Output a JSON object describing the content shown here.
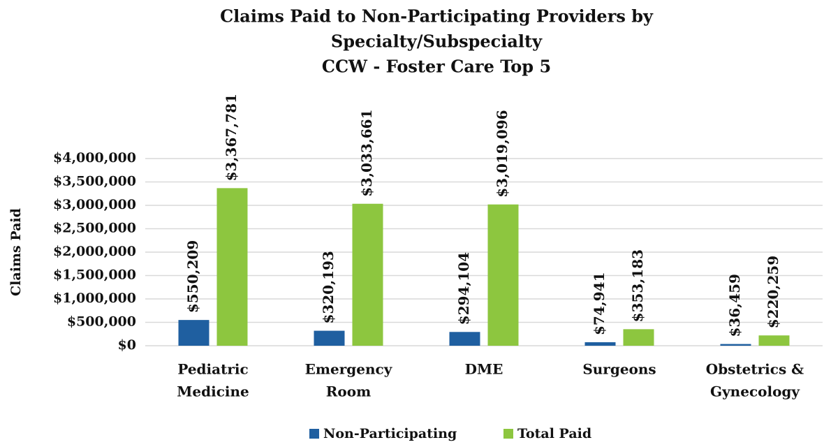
{
  "chart_data": {
    "type": "bar",
    "title": [
      "Claims Paid to Non-Participating Providers by",
      "Specialty/Subspecialty",
      "CCW - Foster Care Top 5"
    ],
    "y_label": "Claims Paid",
    "categories": [
      [
        "Pediatric",
        "Medicine"
      ],
      [
        "Emergency",
        "Room"
      ],
      [
        "DME"
      ],
      [
        "Surgeons"
      ],
      [
        "Obstetrics &",
        "Gynecology"
      ]
    ],
    "series": [
      {
        "name": "Non-Participating",
        "color": "#1f5fa0",
        "values": [
          550209,
          320193,
          294104,
          74941,
          36459
        ],
        "value_labels": [
          "$550,209",
          "$320,193",
          "$294,104",
          "$74,941",
          "$36,459"
        ]
      },
      {
        "name": "Total Paid",
        "color": "#8dc63f",
        "values": [
          3367781,
          3033661,
          3019096,
          353183,
          220259
        ],
        "value_labels": [
          "$3,367,781",
          "$3,033,661",
          "$3,019,096",
          "$353,183",
          "$220,259"
        ]
      }
    ],
    "ylim": [
      0,
      4000000
    ],
    "yticks": [
      {
        "value": 0,
        "label": "$0"
      },
      {
        "value": 500000,
        "label": "$500,000"
      },
      {
        "value": 1000000,
        "label": "$1,000,000"
      },
      {
        "value": 1500000,
        "label": "$1,500,000"
      },
      {
        "value": 2000000,
        "label": "$2,000,000"
      },
      {
        "value": 2500000,
        "label": "$2,500,000"
      },
      {
        "value": 3000000,
        "label": "$3,000,000"
      },
      {
        "value": 3500000,
        "label": "$3,500,000"
      },
      {
        "value": 4000000,
        "label": "$4,000,000"
      }
    ],
    "grid": true,
    "legend": "bottom"
  }
}
